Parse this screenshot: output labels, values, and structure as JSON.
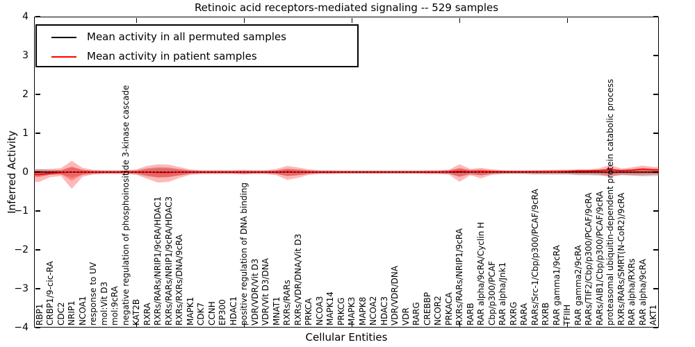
{
  "title": "Retinoic acid receptors-mediated signaling -- 529 samples",
  "axes": {
    "ylabel": "Inferred Activity",
    "xlabel": "Cellular Entities",
    "ytick_labels": [
      "4",
      "3",
      "2",
      "1",
      "0",
      "−1",
      "−2",
      "−3",
      "−4"
    ]
  },
  "legend": {
    "items": [
      {
        "label": "Mean activity in all permuted samples",
        "color": "#000000"
      },
      {
        "label": "Mean activity in patient samples",
        "color": "#ff0000"
      }
    ],
    "position": "upper left"
  },
  "chart_data": {
    "type": "line",
    "title": "Retinoic acid receptors-mediated signaling -- 529 samples",
    "xlabel": "Cellular Entities",
    "ylabel": "Inferred Activity",
    "ylim": [
      -4,
      4
    ],
    "yticks": [
      4,
      3,
      2,
      1,
      0,
      -1,
      -2,
      -3,
      -4
    ],
    "grid": false,
    "legend_position": "upper left",
    "xticks_top_indices": [
      9,
      19,
      29,
      39,
      49
    ],
    "categories": [
      "RBP1",
      "CRBP1/9-cic-RA",
      "CDC2",
      "NRIP1",
      "NCOA1",
      "response to UV",
      "mol:Vit D3",
      "mol:9cRA",
      "negative regulation of phosphoinositide 3-kinase cascade",
      "KAT2B",
      "RXRA",
      "RXRs/RARs/NRIP1/9cRA/HDAC1",
      "RXRs/RARs/NRIP1/9cRA/HDAC3",
      "RXRs/RXRs/DNA/9cRA",
      "MAPK1",
      "CDK7",
      "CCNH",
      "EP300",
      "HDAC1",
      "positive regulation of DNA binding",
      "VDR/VDR/Vit D3",
      "VDR/Vit D3/DNA",
      "MNAT1",
      "RXRs/RARs",
      "RXRs/VDR/DNA/Vit D3",
      "PRKCA",
      "NCOA3",
      "MAPK14",
      "PRKCG",
      "MAPK3",
      "MAPK8",
      "NCOA2",
      "HDAC3",
      "VDR/VDR/DNA",
      "VDR",
      "RARG",
      "CREBBP",
      "NCOR2",
      "PRKACA",
      "RXRs/RARs/NRIP1/9cRA",
      "RARB",
      "RAR alpha/9cRA/Cyclin H",
      "Cbp/p300/PCAF",
      "RAR alpha/Jnk1",
      "RXRG",
      "RARA",
      "RARs/Src-1/Cbp/p300/PCAF/9cRA",
      "RXRB",
      "RAR gamma1/9cRA",
      "TFIIH",
      "RAR gamma2/9cRA",
      "RARs/TIF2/Cbp/p300/PCAF/9cRA",
      "RARs/AIB1/Cbp/p300/PCAF/9cRA",
      "proteasomal ubiquitin-dependent protein catabolic process",
      "RXRs/RARs/SMRT(N-CoR2)/9cRA",
      "RAR alpha/RXRs",
      "RAR alpha/9cRA",
      "AKT1"
    ],
    "series": [
      {
        "name": "Mean activity in all permuted samples",
        "color": "#000000",
        "style": "solid-plus-dotted",
        "values": [
          0,
          0,
          0,
          0,
          0,
          0,
          0,
          0,
          0,
          0,
          0,
          0,
          0,
          0,
          0,
          0,
          0,
          0,
          0,
          0,
          0,
          0,
          0,
          0,
          0,
          0,
          0,
          0,
          0,
          0,
          0,
          0,
          0,
          0,
          0,
          0,
          0,
          0,
          0,
          0,
          0,
          0,
          0,
          0,
          0,
          0,
          0,
          0,
          0,
          0,
          0,
          0,
          0,
          0,
          0,
          0,
          0,
          0
        ]
      },
      {
        "name": "Mean activity in patient samples",
        "color": "#ff0000",
        "style": "solid",
        "values": [
          -0.06,
          -0.03,
          -0.01,
          0,
          0,
          0,
          0,
          0,
          0,
          0,
          0,
          -0.01,
          -0.01,
          0,
          0,
          0,
          0,
          0,
          0,
          0,
          0,
          0,
          0,
          0.01,
          0,
          0,
          0,
          0,
          0,
          0,
          0,
          0,
          0,
          0,
          0,
          0,
          0,
          0,
          0.01,
          0.02,
          0.01,
          0.01,
          0.01,
          0.01,
          0.01,
          0.01,
          0.01,
          0.01,
          0.01,
          0.02,
          0.03,
          0.03,
          0.04,
          0.06,
          0.04,
          0.05,
          0.08,
          0.06
        ]
      }
    ],
    "bands": [
      {
        "name": "permuted-activity-range",
        "color": "#777777",
        "opacity": 0.35,
        "upper": [
          0.08,
          0.06,
          0.05,
          0.12,
          0.06,
          0.04,
          0.04,
          0.04,
          0.04,
          0.05,
          0.1,
          0.13,
          0.12,
          0.08,
          0.05,
          0.04,
          0.04,
          0.04,
          0.04,
          0.04,
          0.04,
          0.04,
          0.05,
          0.09,
          0.07,
          0.05,
          0.04,
          0.04,
          0.04,
          0.04,
          0.04,
          0.04,
          0.04,
          0.04,
          0.04,
          0.04,
          0.04,
          0.04,
          0.05,
          0.1,
          0.06,
          0.07,
          0.05,
          0.04,
          0.04,
          0.04,
          0.04,
          0.05,
          0.05,
          0.05,
          0.06,
          0.06,
          0.07,
          0.08,
          0.06,
          0.07,
          0.08,
          0.08
        ],
        "lower": [
          0.1,
          0.07,
          0.06,
          0.13,
          0.07,
          0.05,
          0.04,
          0.04,
          0.04,
          0.05,
          0.11,
          0.14,
          0.13,
          0.09,
          0.05,
          0.04,
          0.04,
          0.04,
          0.04,
          0.05,
          0.04,
          0.04,
          0.05,
          0.1,
          0.08,
          0.05,
          0.04,
          0.04,
          0.04,
          0.04,
          0.04,
          0.04,
          0.04,
          0.04,
          0.04,
          0.04,
          0.04,
          0.04,
          0.05,
          0.11,
          0.06,
          0.08,
          0.05,
          0.04,
          0.05,
          0.05,
          0.06,
          0.06,
          0.06,
          0.06,
          0.08,
          0.08,
          0.09,
          0.1,
          0.08,
          0.09,
          0.11,
          0.1
        ]
      },
      {
        "name": "patient-activity-range",
        "color": "#ff0000",
        "opacity": 0.28,
        "upper": [
          0.07,
          0.08,
          0.1,
          0.29,
          0.11,
          0.06,
          0.05,
          0.05,
          0.05,
          0.07,
          0.16,
          0.2,
          0.19,
          0.13,
          0.07,
          0.05,
          0.05,
          0.05,
          0.05,
          0.06,
          0.05,
          0.05,
          0.08,
          0.16,
          0.12,
          0.07,
          0.05,
          0.05,
          0.04,
          0.04,
          0.04,
          0.04,
          0.04,
          0.04,
          0.04,
          0.04,
          0.05,
          0.05,
          0.06,
          0.2,
          0.08,
          0.11,
          0.07,
          0.05,
          0.04,
          0.04,
          0.05,
          0.05,
          0.06,
          0.06,
          0.07,
          0.07,
          0.1,
          0.18,
          0.09,
          0.12,
          0.17,
          0.13
        ],
        "lower": [
          0.25,
          0.13,
          0.1,
          0.43,
          0.12,
          0.06,
          0.05,
          0.05,
          0.05,
          0.07,
          0.17,
          0.27,
          0.25,
          0.15,
          0.07,
          0.05,
          0.05,
          0.05,
          0.05,
          0.06,
          0.05,
          0.05,
          0.08,
          0.2,
          0.15,
          0.07,
          0.05,
          0.05,
          0.04,
          0.04,
          0.04,
          0.04,
          0.04,
          0.04,
          0.04,
          0.04,
          0.05,
          0.05,
          0.06,
          0.25,
          0.08,
          0.16,
          0.07,
          0.05,
          0.04,
          0.04,
          0.05,
          0.05,
          0.05,
          0.05,
          0.06,
          0.06,
          0.07,
          0.13,
          0.07,
          0.08,
          0.08,
          0.07
        ]
      },
      {
        "name": "patient-activity-inner-range",
        "color": "#ff0000",
        "opacity": 0.3,
        "scale_of": "patient-activity-range",
        "scale": 0.5
      }
    ]
  }
}
